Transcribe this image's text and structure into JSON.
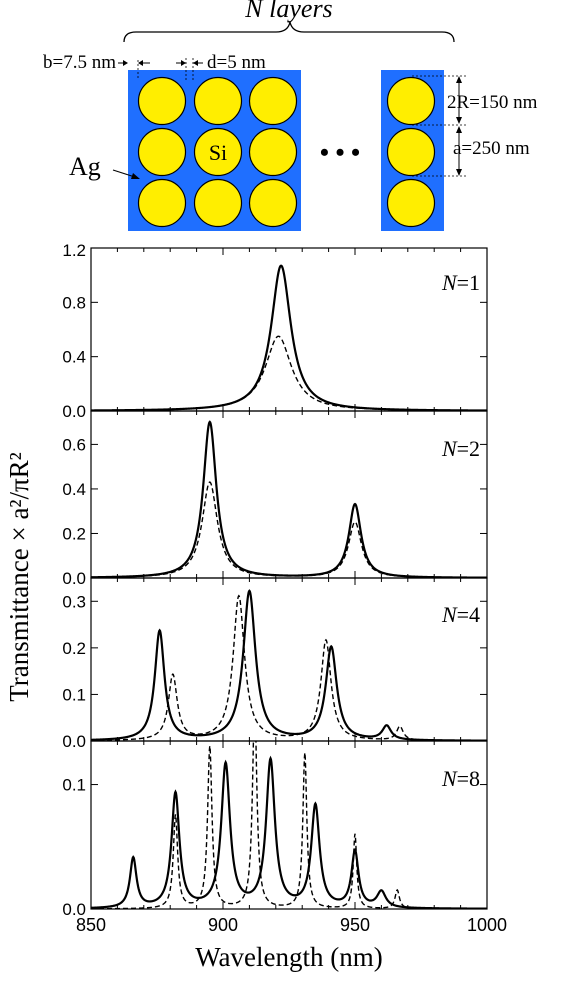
{
  "figure": {
    "ylabel": "Transmittance × a²/πR²",
    "xlabel": "Wavelength (nm)"
  },
  "schematic": {
    "n_layers_label": "N layers",
    "b_label": "b=7.5 nm",
    "d_label": "d=5 nm",
    "diameter_label": "2R=150 nm",
    "period_label": "a=250 nm",
    "ag_label": "Ag",
    "si_label": "Si",
    "ellipsis": "• • •",
    "colors": {
      "metal": "#1f6fff",
      "rods": "#ffee00"
    }
  },
  "chart_data": [
    {
      "type": "line",
      "panel_label": "N=1",
      "xlim": [
        850,
        1000
      ],
      "ylim": [
        0,
        1.2
      ],
      "xticks": [
        850,
        900,
        950,
        1000
      ],
      "yticks": [
        0.0,
        0.4,
        0.8,
        1.2
      ],
      "ytick_labels": [
        "0.0",
        "0.4",
        "0.8",
        "1.2"
      ],
      "series": [
        {
          "style": "solid",
          "peaks": [
            {
              "x": 922,
              "y": 1.07,
              "w": 4.5
            }
          ]
        },
        {
          "style": "dashed",
          "peaks": [
            {
              "x": 921,
              "y": 0.55,
              "w": 6.0
            }
          ]
        }
      ]
    },
    {
      "type": "line",
      "panel_label": "N=2",
      "xlim": [
        850,
        1000
      ],
      "ylim": [
        0,
        0.75
      ],
      "xticks": [
        850,
        900,
        950,
        1000
      ],
      "yticks": [
        0.0,
        0.2,
        0.4,
        0.6
      ],
      "ytick_labels": [
        "0.0",
        "0.2",
        "0.4",
        "0.6"
      ],
      "series": [
        {
          "style": "solid",
          "peaks": [
            {
              "x": 895,
              "y": 0.7,
              "w": 3.0
            },
            {
              "x": 950,
              "y": 0.33,
              "w": 2.8
            }
          ]
        },
        {
          "style": "dashed",
          "peaks": [
            {
              "x": 895,
              "y": 0.43,
              "w": 3.5
            },
            {
              "x": 950,
              "y": 0.25,
              "w": 3.0
            }
          ]
        }
      ]
    },
    {
      "type": "line",
      "panel_label": "N=4",
      "xlim": [
        850,
        1000
      ],
      "ylim": [
        0,
        0.35
      ],
      "xticks": [
        850,
        900,
        950,
        1000
      ],
      "yticks": [
        0.0,
        0.1,
        0.2,
        0.3
      ],
      "ytick_labels": [
        "0.0",
        "0.1",
        "0.2",
        "0.3"
      ],
      "series": [
        {
          "style": "solid",
          "peaks": [
            {
              "x": 876,
              "y": 0.235,
              "w": 2.2
            },
            {
              "x": 910,
              "y": 0.32,
              "w": 2.8
            },
            {
              "x": 941,
              "y": 0.2,
              "w": 2.5
            },
            {
              "x": 962,
              "y": 0.03,
              "w": 2.0
            }
          ]
        },
        {
          "style": "dashed",
          "peaks": [
            {
              "x": 881,
              "y": 0.14,
              "w": 2.0
            },
            {
              "x": 906,
              "y": 0.31,
              "w": 2.6
            },
            {
              "x": 939,
              "y": 0.215,
              "w": 2.3
            },
            {
              "x": 967,
              "y": 0.03,
              "w": 1.5
            }
          ]
        }
      ]
    },
    {
      "type": "line",
      "panel_label": "N=8",
      "xlim": [
        850,
        1000
      ],
      "ylim": [
        0,
        0.135
      ],
      "xticks": [
        850,
        900,
        950,
        1000
      ],
      "xtick_labels": [
        "850",
        "900",
        "950",
        "1000"
      ],
      "yticks": [
        0.0,
        0.1
      ],
      "ytick_labels": [
        "0.0",
        "0.1"
      ],
      "series": [
        {
          "style": "solid",
          "peaks": [
            {
              "x": 866,
              "y": 0.04,
              "w": 1.5
            },
            {
              "x": 882,
              "y": 0.092,
              "w": 1.8
            },
            {
              "x": 901,
              "y": 0.115,
              "w": 2.0
            },
            {
              "x": 918,
              "y": 0.118,
              "w": 2.0
            },
            {
              "x": 935,
              "y": 0.082,
              "w": 1.9
            },
            {
              "x": 950,
              "y": 0.045,
              "w": 1.6
            },
            {
              "x": 960,
              "y": 0.013,
              "w": 2.0
            }
          ]
        },
        {
          "style": "dashed",
          "peaks": [
            {
              "x": 882,
              "y": 0.075,
              "w": 1.0
            },
            {
              "x": 895,
              "y": 0.13,
              "w": 1.0
            },
            {
              "x": 912,
              "y": 0.165,
              "w": 1.0
            },
            {
              "x": 931,
              "y": 0.125,
              "w": 0.9
            },
            {
              "x": 950,
              "y": 0.06,
              "w": 0.8
            },
            {
              "x": 966,
              "y": 0.015,
              "w": 1.0
            }
          ]
        }
      ]
    }
  ]
}
